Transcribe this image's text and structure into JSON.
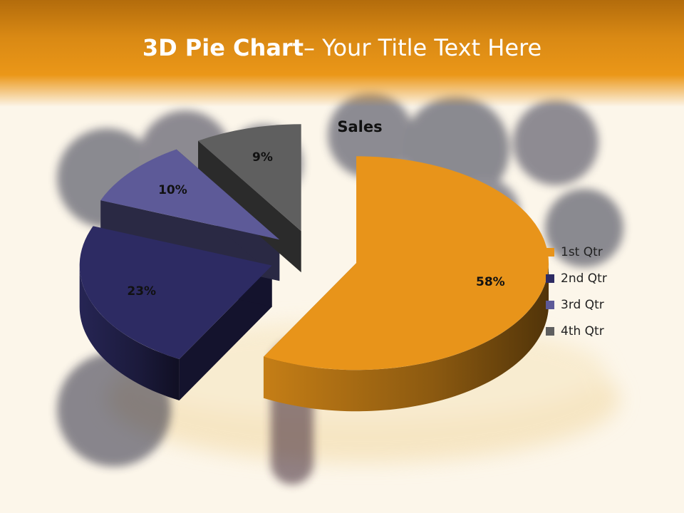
{
  "slide": {
    "title_bold": "3D Pie Chart",
    "title_rest": "– Your Title Text Here"
  },
  "colors": {
    "title_band": "#e8951a",
    "background": "#fbf7ee"
  },
  "chart_data": {
    "type": "pie",
    "title": "Sales",
    "categories": [
      "1st Qtr",
      "2nd Qtr",
      "3rd Qtr",
      "4th Qtr"
    ],
    "values": [
      58,
      23,
      10,
      9
    ],
    "labels": [
      "58%",
      "23%",
      "10%",
      "9%"
    ],
    "colors": [
      "#e8941a",
      "#2d2b63",
      "#5d5a98",
      "#5f5f5f"
    ],
    "exploded": true,
    "three_d": true,
    "legend_position": "right"
  }
}
